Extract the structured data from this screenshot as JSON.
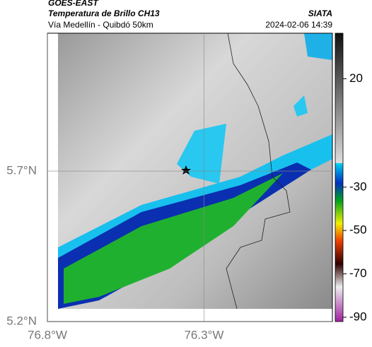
{
  "header": {
    "source": "GOES-EAST",
    "product": "Temperatura de Brillo CH13",
    "agency": "SIATA",
    "route": "Vía Medellín - Quibdó 50km",
    "timestamp": "2024-02-06 14:39"
  },
  "map": {
    "xlim": [
      -76.8,
      -75.89
    ],
    "ylim": [
      5.2,
      6.158
    ],
    "xticks": [
      {
        "value": -76.8,
        "label": "76.8°W"
      },
      {
        "value": -76.3,
        "label": "76.3°W"
      }
    ],
    "yticks": [
      {
        "value": 5.2,
        "label": "5.2°N"
      },
      {
        "value": 5.7,
        "label": "5.7°N"
      }
    ],
    "grid": true
  },
  "colorbar": {
    "lim": [
      -92,
      41
    ],
    "ticks": [
      20,
      -30,
      -50,
      -70,
      -90
    ]
  }
}
